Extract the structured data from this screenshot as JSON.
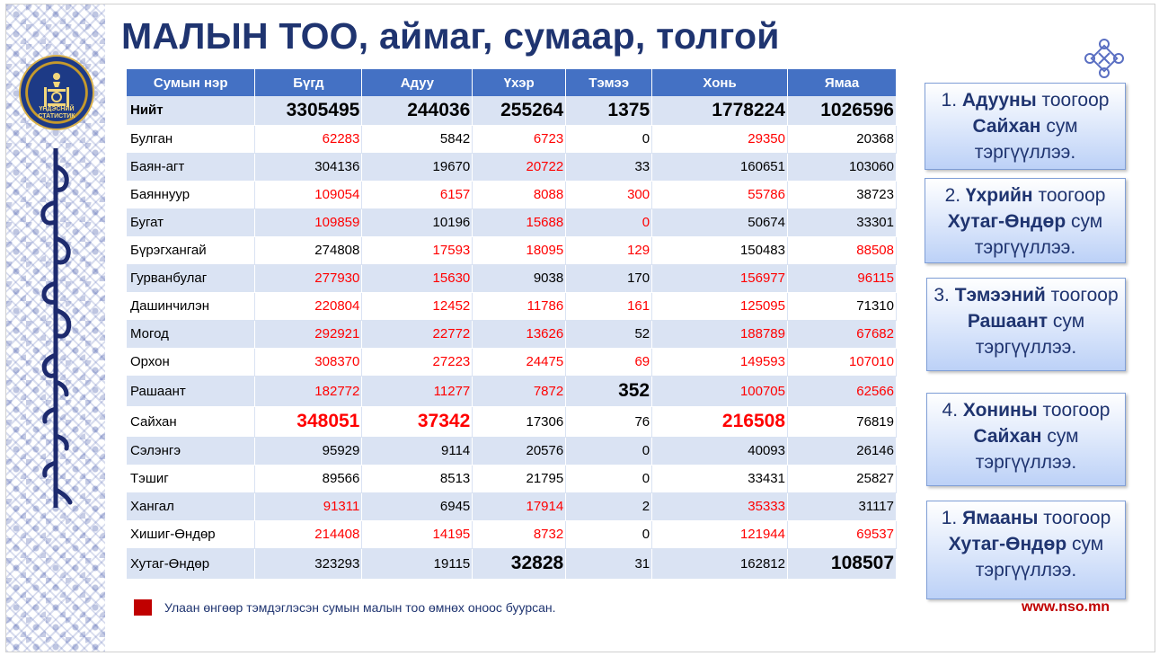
{
  "title": "МАЛЫН ТОО, аймаг, сумаар, толгой",
  "logo": {
    "text_line1": "ҮНДЭСНИЙ",
    "text_line2": "СТАТИСТИК"
  },
  "table": {
    "headers": [
      "Сумын нэр",
      "Бүгд",
      "Адуу",
      "Үхэр",
      "Тэмээ",
      "Хонь",
      "Ямаа"
    ],
    "total": {
      "label": "Нийт",
      "values": [
        "3305495",
        "244036",
        "255264",
        "1375",
        "1778224",
        "1026596"
      ]
    },
    "rows": [
      {
        "name": "Булган",
        "values": [
          "62283",
          "5842",
          "6723",
          "0",
          "29350",
          "20368"
        ]
      },
      {
        "name": "Баян-агт",
        "values": [
          "304136",
          "19670",
          "20722",
          "33",
          "160651",
          "103060"
        ]
      },
      {
        "name": "Баяннуур",
        "values": [
          "109054",
          "6157",
          "8088",
          "300",
          "55786",
          "38723"
        ]
      },
      {
        "name": "Бугат",
        "values": [
          "109859",
          "10196",
          "15688",
          "0",
          "50674",
          "33301"
        ]
      },
      {
        "name": "Бүрэгхангай",
        "values": [
          "274808",
          "17593",
          "18095",
          "129",
          "150483",
          "88508"
        ]
      },
      {
        "name": "Гурванбулаг",
        "values": [
          "277930",
          "15630",
          "9038",
          "170",
          "156977",
          "96115"
        ]
      },
      {
        "name": "Дашинчилэн",
        "values": [
          "220804",
          "12452",
          "11786",
          "161",
          "125095",
          "71310"
        ]
      },
      {
        "name": "Могод",
        "values": [
          "292921",
          "22772",
          "13626",
          "52",
          "188789",
          "67682"
        ]
      },
      {
        "name": "Орхон",
        "values": [
          "308370",
          "27223",
          "24475",
          "69",
          "149593",
          "107010"
        ]
      },
      {
        "name": "Рашаант",
        "values": [
          "182772",
          "11277",
          "7872",
          "352",
          "100705",
          "62566"
        ]
      },
      {
        "name": "Сайхан",
        "values": [
          "348051",
          "37342",
          "17306",
          "76",
          "216508",
          "76819"
        ]
      },
      {
        "name": "Сэлэнгэ",
        "values": [
          "95929",
          "9114",
          "20576",
          "0",
          "40093",
          "26146"
        ]
      },
      {
        "name": "Тэшиг",
        "values": [
          "89566",
          "8513",
          "21795",
          "0",
          "33431",
          "25827"
        ]
      },
      {
        "name": "Хангал",
        "values": [
          "91311",
          "6945",
          "17914",
          "2",
          "35333",
          "31117"
        ]
      },
      {
        "name": "Хишиг-Өндөр",
        "values": [
          "214408",
          "14195",
          "8732",
          "0",
          "121944",
          "69537"
        ]
      },
      {
        "name": "Хутаг-Өндөр",
        "values": [
          "323293",
          "19115",
          "32828",
          "31",
          "162812",
          "108507"
        ]
      }
    ]
  },
  "colors": {
    "header_bg": "#4471c4",
    "band_bg": "#dae3f3",
    "decrease_red": "#ff0000",
    "title": "#1f3470",
    "legend_swatch": "#c00000"
  },
  "legend": {
    "text": "Улаан өнгөөр тэмдэглэсэн сумын малын тоо өмнөх оноос буурсан."
  },
  "callouts": [
    {
      "a": "1. ",
      "b": "Адууны",
      "c": " тоогоор ",
      "d": "Сайхан",
      "e": " сум тэргүүллээ."
    },
    {
      "a": "2. ",
      "b": "Үхрийн",
      "c": " тоогоор ",
      "d": "Хутаг-Өндөр",
      "e": " сум тэргүүллээ."
    },
    {
      "a": "3. ",
      "b": "Тэмээний",
      "c": " тоогоор ",
      "d": "Рашаант",
      "e": " сум тэргүүллээ."
    },
    {
      "a": "4. ",
      "b": "Хонины",
      "c": " тоогоор ",
      "d": "Сайхан",
      "e": " сум тэргүүллээ."
    },
    {
      "a": "1. ",
      "b": "Ямааны",
      "c": " тоогоор ",
      "d": "Хутаг-Өндөр",
      "e": " сум тэргүүллээ."
    }
  ],
  "footer": {
    "url": "www.nso.mn"
  }
}
